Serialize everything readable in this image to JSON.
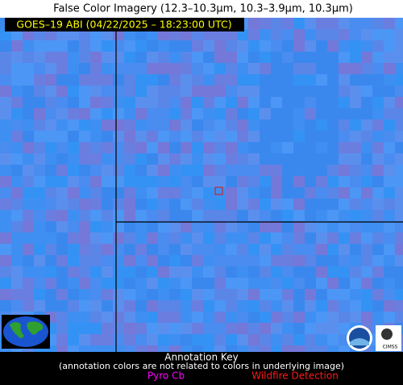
{
  "header": {
    "title": "False Color Imagery (12.3–10.3µm, 10.3–3.9µm, 10.3µm)"
  },
  "image": {
    "label": "GOES–19 ABI (04/22/2025 – 18:23:00 UTC)"
  },
  "annotation_key": {
    "title": "Annotation Key",
    "note": "(annotation colors are not related to colors in underlying image)",
    "items": [
      "Pyro Cb",
      "Wildfire Detection"
    ]
  }
}
